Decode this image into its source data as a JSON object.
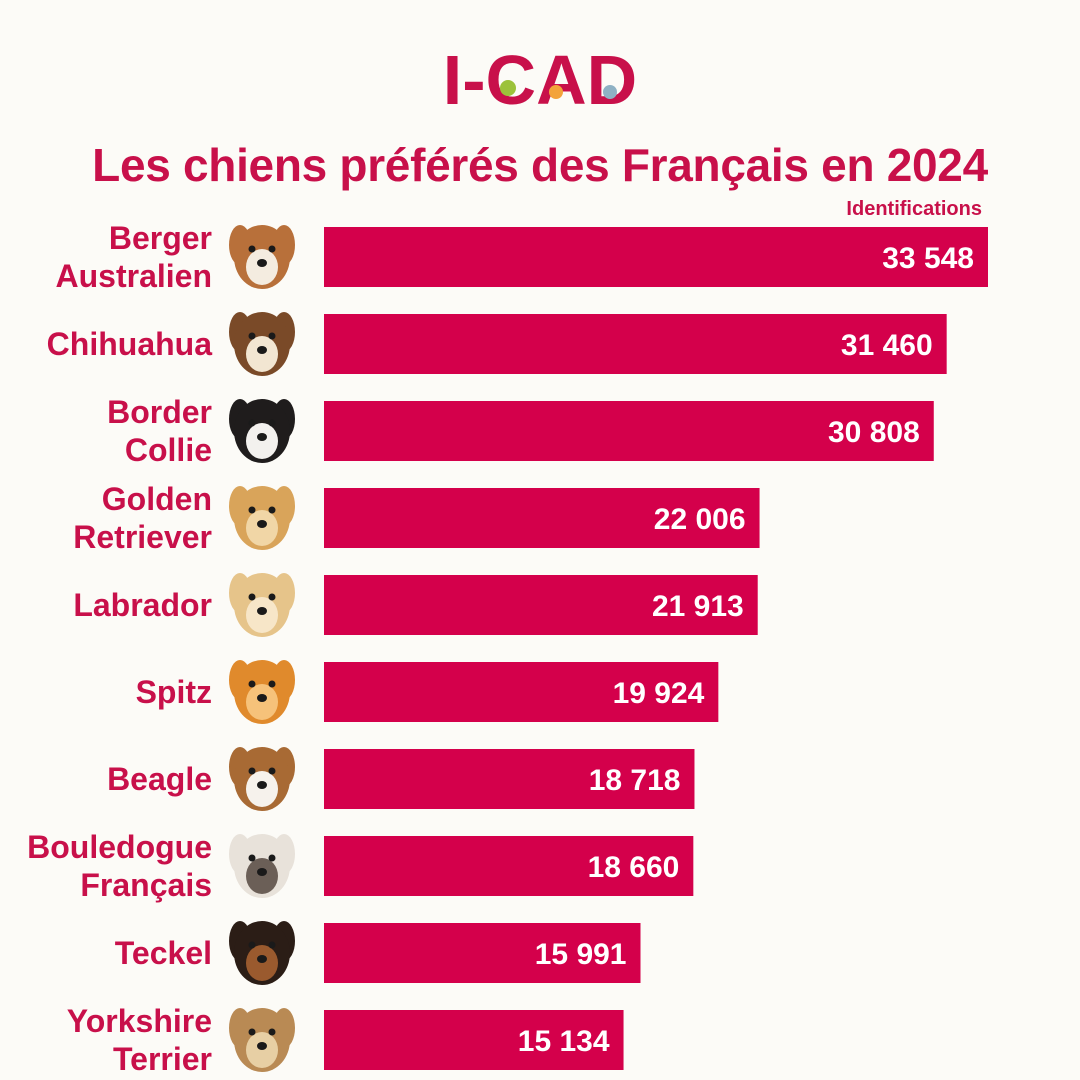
{
  "logo": {
    "text": "I-CAD",
    "color": "#c8104a"
  },
  "header": {
    "title": "Les chiens préférés des Français en 2024"
  },
  "chart_data": {
    "type": "bar",
    "orientation": "horizontal",
    "title": "Les chiens préférés des Français en 2024",
    "value_label": "Identifications",
    "bar_color": "#d4004b",
    "label_color": "#c8104a",
    "categories": [
      [
        "Berger",
        "Australien"
      ],
      [
        "Chihuahua"
      ],
      [
        "Border",
        "Collie"
      ],
      [
        "Golden",
        "Retriever"
      ],
      [
        "Labrador"
      ],
      [
        "Spitz"
      ],
      [
        "Beagle"
      ],
      [
        "Bouledogue",
        "Français"
      ],
      [
        "Teckel"
      ],
      [
        "Yorkshire",
        "Terrier"
      ]
    ],
    "values": [
      33548,
      31460,
      30808,
      22006,
      21913,
      19924,
      18718,
      18660,
      15991,
      15134
    ],
    "value_labels": [
      "33 548",
      "31 460",
      "30 808",
      "22 006",
      "21 913",
      "19 924",
      "18 718",
      "18 660",
      "15 991",
      "15 134"
    ],
    "icons": [
      "australian-shepherd-icon",
      "chihuahua-icon",
      "border-collie-icon",
      "golden-retriever-icon",
      "labrador-icon",
      "spitz-icon",
      "beagle-icon",
      "french-bulldog-icon",
      "dachshund-icon",
      "yorkshire-terrier-icon"
    ],
    "dog_colors": [
      [
        "#b8703a",
        "#f4ece0"
      ],
      [
        "#7a4a28",
        "#f2e6d2"
      ],
      [
        "#1f1c1c",
        "#f3f1ee"
      ],
      [
        "#d9a45a",
        "#f1d6a6"
      ],
      [
        "#e6c48a",
        "#f7e6c8"
      ],
      [
        "#e08a2c",
        "#f6c27a"
      ],
      [
        "#a86a34",
        "#f6f2ec"
      ],
      [
        "#e8e2da",
        "#6b5f57"
      ],
      [
        "#2b1d16",
        "#9a5a2e"
      ],
      [
        "#b98a54",
        "#e7cfa4"
      ]
    ],
    "xlim": [
      0,
      33548
    ],
    "grid": false,
    "legend": "none"
  }
}
